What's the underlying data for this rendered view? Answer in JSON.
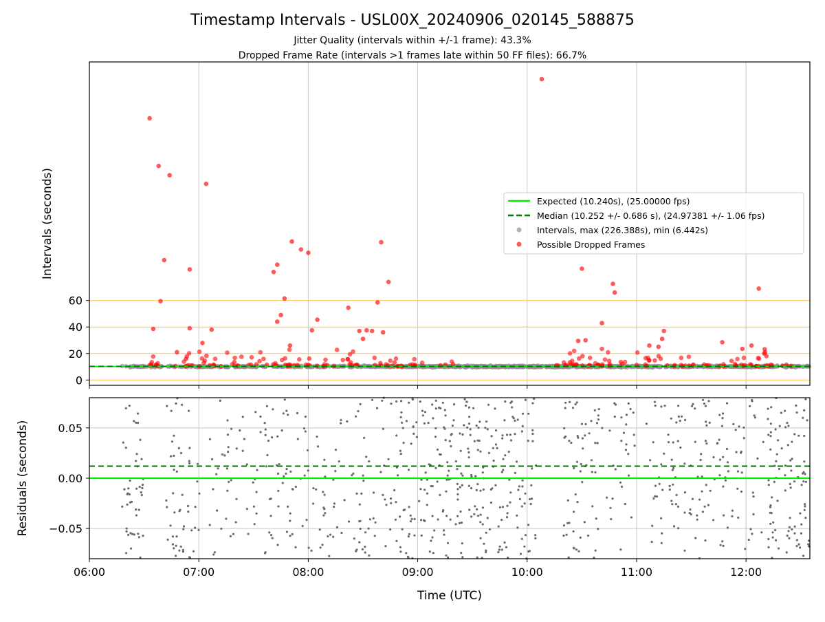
{
  "figure": {
    "title": "Timestamp Intervals - USL00X_20240906_020145_588875",
    "subtitle_1": "Jitter Quality (intervals within +/-1 frame): 43.3%",
    "subtitle_2": "Dropped Frame Rate (intervals >1 frames late within 50 FF files): 66.7%"
  },
  "colors": {
    "expected": "#00ee00",
    "median": "#007700",
    "intervals": "#909090",
    "dropped": "#ff0000",
    "threshold": "#ffc040",
    "grid": "#c8c8c8",
    "residual": "#6a6a6a"
  },
  "chart_data": [
    {
      "type": "scatter",
      "panel": "top",
      "xlabel": "",
      "ylabel": "Intervals (seconds)",
      "xlim": [
        "06:00",
        "12:35"
      ],
      "ylim": [
        -4,
        240
      ],
      "yticks": [
        0,
        20,
        40,
        60
      ],
      "threshold_lines": [
        0,
        20,
        40,
        60
      ],
      "grid": "vertical",
      "legend_position": "center-right",
      "legend": [
        {
          "key": "expected",
          "label": "Expected (10.240s), (25.00000 fps)",
          "style": "line"
        },
        {
          "key": "median",
          "label": "Median (10.252 +/- 0.686 s), (24.97381 +/- 1.06 fps)",
          "style": "dashed"
        },
        {
          "key": "intervals",
          "label": "Intervals, max (226.388s), min (6.442s)",
          "style": "marker"
        },
        {
          "key": "dropped",
          "label": "Possible Dropped Frames",
          "style": "marker"
        }
      ],
      "expected_value": 10.24,
      "median_value": 10.252,
      "series": [
        {
          "name": "Intervals, max (226.388s), min (6.442s)",
          "band": {
            "y_center": 10.2,
            "spread": 1.0
          },
          "segments": [
            [
              "06:18",
              "06:58",
              55
            ],
            [
              "06:58",
              "09:00",
              260
            ],
            [
              "09:00",
              "10:15",
              300
            ],
            [
              "10:15",
              "11:15",
              220
            ],
            [
              "11:15",
              "12:35",
              220
            ]
          ]
        },
        {
          "name": "Possible Dropped Frames",
          "points": [
            {
              "x": "06:33",
              "y": 197.5
            },
            {
              "x": "06:38",
              "y": 161.5
            },
            {
              "x": "06:44",
              "y": 154.5
            },
            {
              "x": "07:04",
              "y": 148
            },
            {
              "x": "06:41",
              "y": 90.5
            },
            {
              "x": "06:55",
              "y": 83.5
            },
            {
              "x": "06:39",
              "y": 59.5
            },
            {
              "x": "06:35",
              "y": 38.5
            },
            {
              "x": "06:55",
              "y": 39
            },
            {
              "x": "07:02",
              "y": 28
            },
            {
              "x": "07:07",
              "y": 38
            },
            {
              "x": "06:48",
              "y": 21
            },
            {
              "x": "06:53",
              "y": 16
            },
            {
              "x": "07:51",
              "y": 104.5
            },
            {
              "x": "07:56",
              "y": 98.5
            },
            {
              "x": "08:00",
              "y": 96
            },
            {
              "x": "07:43",
              "y": 87
            },
            {
              "x": "07:41",
              "y": 81.5
            },
            {
              "x": "07:47",
              "y": 61.5
            },
            {
              "x": "07:45",
              "y": 49
            },
            {
              "x": "07:43",
              "y": 44
            },
            {
              "x": "07:50",
              "y": 26
            },
            {
              "x": "08:05",
              "y": 45.5
            },
            {
              "x": "08:02",
              "y": 37.5
            },
            {
              "x": "08:40",
              "y": 104
            },
            {
              "x": "08:44",
              "y": 74
            },
            {
              "x": "08:22",
              "y": 54.5
            },
            {
              "x": "08:38",
              "y": 58.5
            },
            {
              "x": "08:28",
              "y": 37
            },
            {
              "x": "08:32",
              "y": 37.5
            },
            {
              "x": "08:30",
              "y": 31
            },
            {
              "x": "08:35",
              "y": 37
            },
            {
              "x": "08:41",
              "y": 36
            },
            {
              "x": "10:08",
              "y": 227
            },
            {
              "x": "10:30",
              "y": 84
            },
            {
              "x": "10:47",
              "y": 72.5
            },
            {
              "x": "10:48",
              "y": 66
            },
            {
              "x": "10:41",
              "y": 43
            },
            {
              "x": "10:28",
              "y": 29.5
            },
            {
              "x": "10:32",
              "y": 30
            },
            {
              "x": "11:15",
              "y": 37
            },
            {
              "x": "11:14",
              "y": 31
            },
            {
              "x": "11:12",
              "y": 25
            },
            {
              "x": "11:07",
              "y": 26
            },
            {
              "x": "12:07",
              "y": 69
            },
            {
              "x": "11:47",
              "y": 28.5
            },
            {
              "x": "12:03",
              "y": 26
            },
            {
              "x": "11:58",
              "y": 23.5
            },
            {
              "x": "12:10",
              "y": 20
            }
          ],
          "clusters": [
            [
              "06:33",
              "06:38",
              10
            ],
            [
              "06:45",
              "07:05",
              14
            ],
            [
              "07:05",
              "08:00",
              38
            ],
            [
              "08:00",
              "08:50",
              32
            ],
            [
              "08:50",
              "09:03",
              8
            ],
            [
              "09:12",
              "09:20",
              4
            ],
            [
              "10:15",
              "10:55",
              36
            ],
            [
              "11:00",
              "11:40",
              26
            ],
            [
              "11:45",
              "12:30",
              30
            ]
          ]
        }
      ]
    },
    {
      "type": "scatter",
      "panel": "bottom",
      "xlabel": "Time (UTC)",
      "ylabel": "Residuals (seconds)",
      "xlim": [
        "06:00",
        "12:35"
      ],
      "ylim": [
        -0.08,
        0.08
      ],
      "xticks": [
        "06:00",
        "07:00",
        "08:00",
        "09:00",
        "10:00",
        "11:00",
        "12:00"
      ],
      "ytick_values": [
        0.05,
        0.0,
        -0.05
      ],
      "ytick_labels": [
        "0.05",
        "0.00",
        "−0.05"
      ],
      "grid": "both",
      "expected_value": 0.0,
      "median_value": 0.012,
      "series": [
        {
          "name": "",
          "value_range": [
            -0.08,
            0.08
          ],
          "segments": [
            [
              "06:18",
              "06:30",
              45
            ],
            [
              "06:42",
              "07:02",
              50
            ],
            [
              "07:06",
              "07:35",
              45
            ],
            [
              "07:35",
              "08:00",
              55
            ],
            [
              "08:00",
              "08:12",
              20
            ],
            [
              "08:12",
              "08:50",
              70
            ],
            [
              "08:50",
              "10:05",
              280
            ],
            [
              "10:20",
              "10:40",
              60
            ],
            [
              "10:40",
              "11:00",
              30
            ],
            [
              "11:05",
              "11:45",
              90
            ],
            [
              "11:45",
              "12:10",
              50
            ],
            [
              "12:12",
              "12:35",
              95
            ]
          ]
        }
      ]
    }
  ]
}
